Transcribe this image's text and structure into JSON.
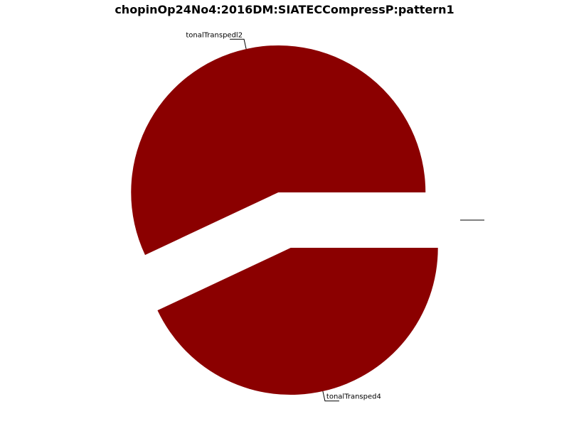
{
  "chart_data": {
    "type": "pie",
    "title": "chopinOp24No4:2016DM:SIATECCompressP:pattern1",
    "slices": [
      {
        "label": "tonalTranspedl2",
        "value": 57.0,
        "color": "#8b0000"
      },
      {
        "label": "tonalTransped4",
        "value": 43.0,
        "color": "#8b0000"
      },
      {
        "label": "",
        "value": 0.0,
        "color": "#8b0000"
      },
      {
        "label": "",
        "value": 0.0,
        "color": "#8b0000"
      }
    ],
    "start_angle_deg": 0,
    "direction": "counterclockwise",
    "legend": "none"
  }
}
